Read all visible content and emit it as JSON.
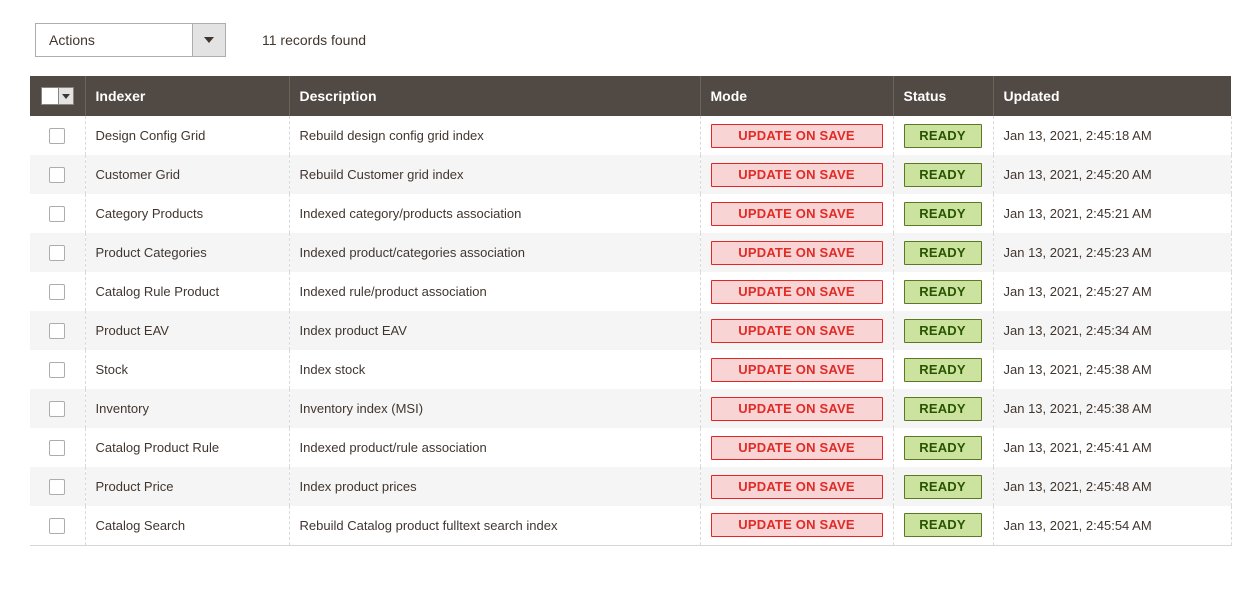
{
  "toolbar": {
    "actions_label": "Actions",
    "records_found": "11 records found"
  },
  "table": {
    "columns": {
      "indexer": "Indexer",
      "description": "Description",
      "mode": "Mode",
      "status": "Status",
      "updated": "Updated"
    },
    "rows": [
      {
        "indexer": "Design Config Grid",
        "description": "Rebuild design config grid index",
        "mode": "UPDATE ON SAVE",
        "status": "READY",
        "updated": "Jan 13, 2021, 2:45:18 AM"
      },
      {
        "indexer": "Customer Grid",
        "description": "Rebuild Customer grid index",
        "mode": "UPDATE ON SAVE",
        "status": "READY",
        "updated": "Jan 13, 2021, 2:45:20 AM"
      },
      {
        "indexer": "Category Products",
        "description": "Indexed category/products association",
        "mode": "UPDATE ON SAVE",
        "status": "READY",
        "updated": "Jan 13, 2021, 2:45:21 AM"
      },
      {
        "indexer": "Product Categories",
        "description": "Indexed product/categories association",
        "mode": "UPDATE ON SAVE",
        "status": "READY",
        "updated": "Jan 13, 2021, 2:45:23 AM"
      },
      {
        "indexer": "Catalog Rule Product",
        "description": "Indexed rule/product association",
        "mode": "UPDATE ON SAVE",
        "status": "READY",
        "updated": "Jan 13, 2021, 2:45:27 AM"
      },
      {
        "indexer": "Product EAV",
        "description": "Index product EAV",
        "mode": "UPDATE ON SAVE",
        "status": "READY",
        "updated": "Jan 13, 2021, 2:45:34 AM"
      },
      {
        "indexer": "Stock",
        "description": "Index stock",
        "mode": "UPDATE ON SAVE",
        "status": "READY",
        "updated": "Jan 13, 2021, 2:45:38 AM"
      },
      {
        "indexer": "Inventory",
        "description": "Inventory index (MSI)",
        "mode": "UPDATE ON SAVE",
        "status": "READY",
        "updated": "Jan 13, 2021, 2:45:38 AM"
      },
      {
        "indexer": "Catalog Product Rule",
        "description": "Indexed product/rule association",
        "mode": "UPDATE ON SAVE",
        "status": "READY",
        "updated": "Jan 13, 2021, 2:45:41 AM"
      },
      {
        "indexer": "Product Price",
        "description": "Index product prices",
        "mode": "UPDATE ON SAVE",
        "status": "READY",
        "updated": "Jan 13, 2021, 2:45:48 AM"
      },
      {
        "indexer": "Catalog Search",
        "description": "Rebuild Catalog product fulltext search index",
        "mode": "UPDATE ON SAVE",
        "status": "READY",
        "updated": "Jan 13, 2021, 2:45:54 AM"
      }
    ]
  },
  "colors": {
    "header_bg": "#514943",
    "mode_bg": "#f9d4d4",
    "mode_border": "#e22626",
    "mode_text": "#e02b27",
    "status_bg": "#cbe39e",
    "status_border": "#5b7921",
    "status_text": "#2a5500"
  }
}
